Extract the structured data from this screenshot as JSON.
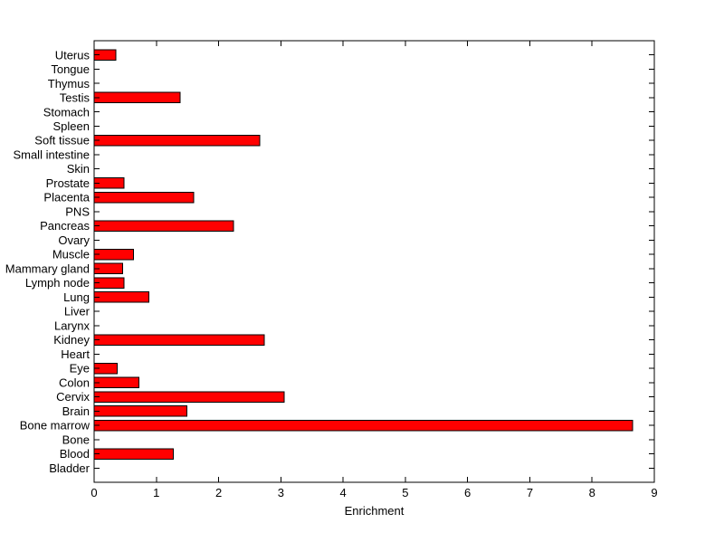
{
  "figure": {
    "background": "#ffffff"
  },
  "chart_data": {
    "type": "bar",
    "orientation": "horizontal",
    "title": "",
    "xlabel": "Enrichment",
    "ylabel": "",
    "xlim": [
      0,
      9
    ],
    "xticks": [
      0,
      1,
      2,
      3,
      4,
      5,
      6,
      7,
      8,
      9
    ],
    "grid": false,
    "legend": null,
    "bar_fill": "#ff0000",
    "bar_edge": "#000000",
    "axis_color": "#000000",
    "text_color": "#000000",
    "categories": [
      "Uterus",
      "Tongue",
      "Thymus",
      "Testis",
      "Stomach",
      "Spleen",
      "Soft tissue",
      "Small intestine",
      "Skin",
      "Prostate",
      "Placenta",
      "PNS",
      "Pancreas",
      "Ovary",
      "Muscle",
      "Mammary gland",
      "Lymph node",
      "Lung",
      "Liver",
      "Larynx",
      "Kidney",
      "Heart",
      "Eye",
      "Colon",
      "Cervix",
      "Brain",
      "Bone marrow",
      "Bone",
      "Blood",
      "Bladder"
    ],
    "values": [
      0.35,
      0,
      0,
      1.38,
      0,
      0,
      2.66,
      0,
      0,
      0.48,
      1.6,
      0,
      2.24,
      0,
      0.63,
      0.46,
      0.48,
      0.88,
      0,
      0,
      2.73,
      0,
      0.37,
      0.72,
      3.05,
      1.49,
      8.65,
      0,
      1.27,
      0
    ]
  }
}
